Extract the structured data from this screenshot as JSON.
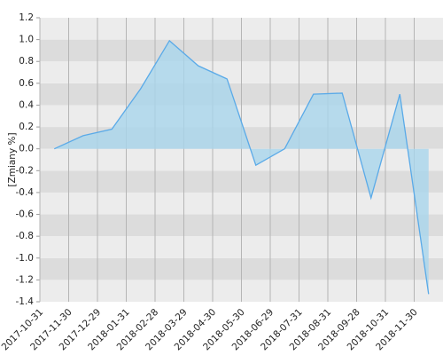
{
  "chart_data": {
    "type": "area",
    "y_label": "[Zmiany %]",
    "categories": [
      "2017-10-31",
      "2017-11-30",
      "2017-12-29",
      "2018-01-31",
      "2018-02-28",
      "2018-03-29",
      "2018-04-30",
      "2018-05-30",
      "2018-06-29",
      "2018-07-31",
      "2018-08-31",
      "2018-09-28",
      "2018-10-31",
      "2018-11-30"
    ],
    "values": [
      0.0,
      0.12,
      0.18,
      0.55,
      0.99,
      0.76,
      0.64,
      -0.15,
      0.0,
      0.5,
      0.51,
      -0.45,
      0.5,
      -1.33
    ],
    "color": "#5aaae8",
    "fill": "#a9d6ec",
    "ylim": [
      -1.4,
      1.2
    ],
    "yticks": [
      -1.4,
      -1.2,
      {
        "value": -1.0,
        "label": "-1.0"
      },
      -0.8,
      -0.6,
      -0.4,
      -0.2,
      {
        "value": 0.0,
        "label": "0.0"
      },
      0.2,
      0.4,
      0.6,
      0.8,
      {
        "value": 1.0,
        "label": "1.0"
      },
      1.2
    ],
    "grid": true
  }
}
